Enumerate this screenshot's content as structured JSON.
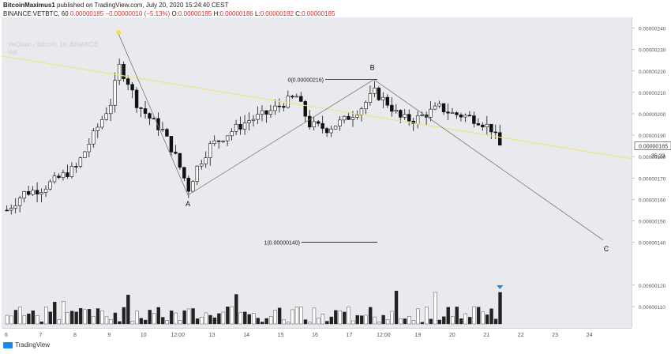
{
  "header": {
    "author": "BitcoinMaximus1",
    "published_text": "published on TradingView.com, July 20, 2020 15:24:40 CEST",
    "symbol_line": "BINANCE:VETBTC, 60",
    "change_value": "0.00000185 −0.00000010 (−5.13%)",
    "o_label": "O:",
    "o_value": "0.00000185",
    "h_label": "H:",
    "h_value": "0.00000186",
    "l_label": "L:",
    "l_value": "0.00000182",
    "c_label": "C:",
    "c_value": "0.00000185"
  },
  "legend": {
    "title": "VeChain / Bitcoin, 1h, BINANCE",
    "vol": "Vol"
  },
  "footer": {
    "brand": "TradingView"
  },
  "colors": {
    "background": "#e9eaee",
    "candle": "#111111",
    "trend_line": "#ece28a",
    "wave_line": "#777777",
    "marker": "#1e88e5",
    "price_label": "#333333"
  },
  "chart_data": {
    "type": "candlestick",
    "symbol": "VETBTC",
    "interval": "1h",
    "ylim": [
      1e-06,
      2.45e-06
    ],
    "y_ticks": [
      "0.00000240",
      "0.00000230",
      "0.00000220",
      "0.00000210",
      "0.00000200",
      "0.00000190",
      "0.00000180",
      "0.00000170",
      "0.00000160",
      "0.00000150",
      "0.00000140",
      "0.00000120",
      "0.00000110"
    ],
    "x_ticks": [
      "6",
      "7",
      "8",
      "9",
      "10",
      "12:00",
      "13",
      "14",
      "15",
      "16",
      "17",
      "12:00",
      "19",
      "20",
      "21",
      "22",
      "23",
      "24"
    ],
    "current_price": "0.00000185",
    "countdown": "35:23",
    "fib_levels": [
      {
        "label": "0(0.00000216)",
        "value": 2.16e-06
      },
      {
        "label": "1(0.00000140)",
        "value": 1.4e-06
      }
    ],
    "wave_labels": [
      "A",
      "B",
      "C"
    ],
    "price_path": [
      [
        0,
        1.55e-06
      ],
      [
        4,
        1.63e-06
      ],
      [
        8,
        1.65e-06
      ],
      [
        12,
        1.7e-06
      ],
      [
        16,
        1.75e-06
      ],
      [
        20,
        1.9e-06
      ],
      [
        24,
        2.05e-06
      ],
      [
        26,
        2.22e-06
      ],
      [
        28,
        2.15e-06
      ],
      [
        30,
        2.05e-06
      ],
      [
        33,
        1.98e-06
      ],
      [
        36,
        1.92e-06
      ],
      [
        39,
        1.8e-06
      ],
      [
        42,
        1.65e-06
      ],
      [
        44,
        1.75e-06
      ],
      [
        47,
        1.85e-06
      ],
      [
        52,
        1.92e-06
      ],
      [
        56,
        1.97e-06
      ],
      [
        60,
        2e-06
      ],
      [
        64,
        2.05e-06
      ],
      [
        67,
        2.08e-06
      ],
      [
        70,
        1.95e-06
      ],
      [
        74,
        1.93e-06
      ],
      [
        78,
        1.97e-06
      ],
      [
        82,
        2.03e-06
      ],
      [
        85,
        2.1e-06
      ],
      [
        88,
        2.05e-06
      ],
      [
        91,
        1.98e-06
      ],
      [
        94,
        1.97e-06
      ],
      [
        97,
        2e-06
      ],
      [
        100,
        2.03e-06
      ],
      [
        103,
        2e-06
      ],
      [
        106,
        1.99e-06
      ],
      [
        109,
        1.97e-06
      ],
      [
        112,
        1.93e-06
      ],
      [
        114,
        1.85e-06
      ]
    ]
  }
}
